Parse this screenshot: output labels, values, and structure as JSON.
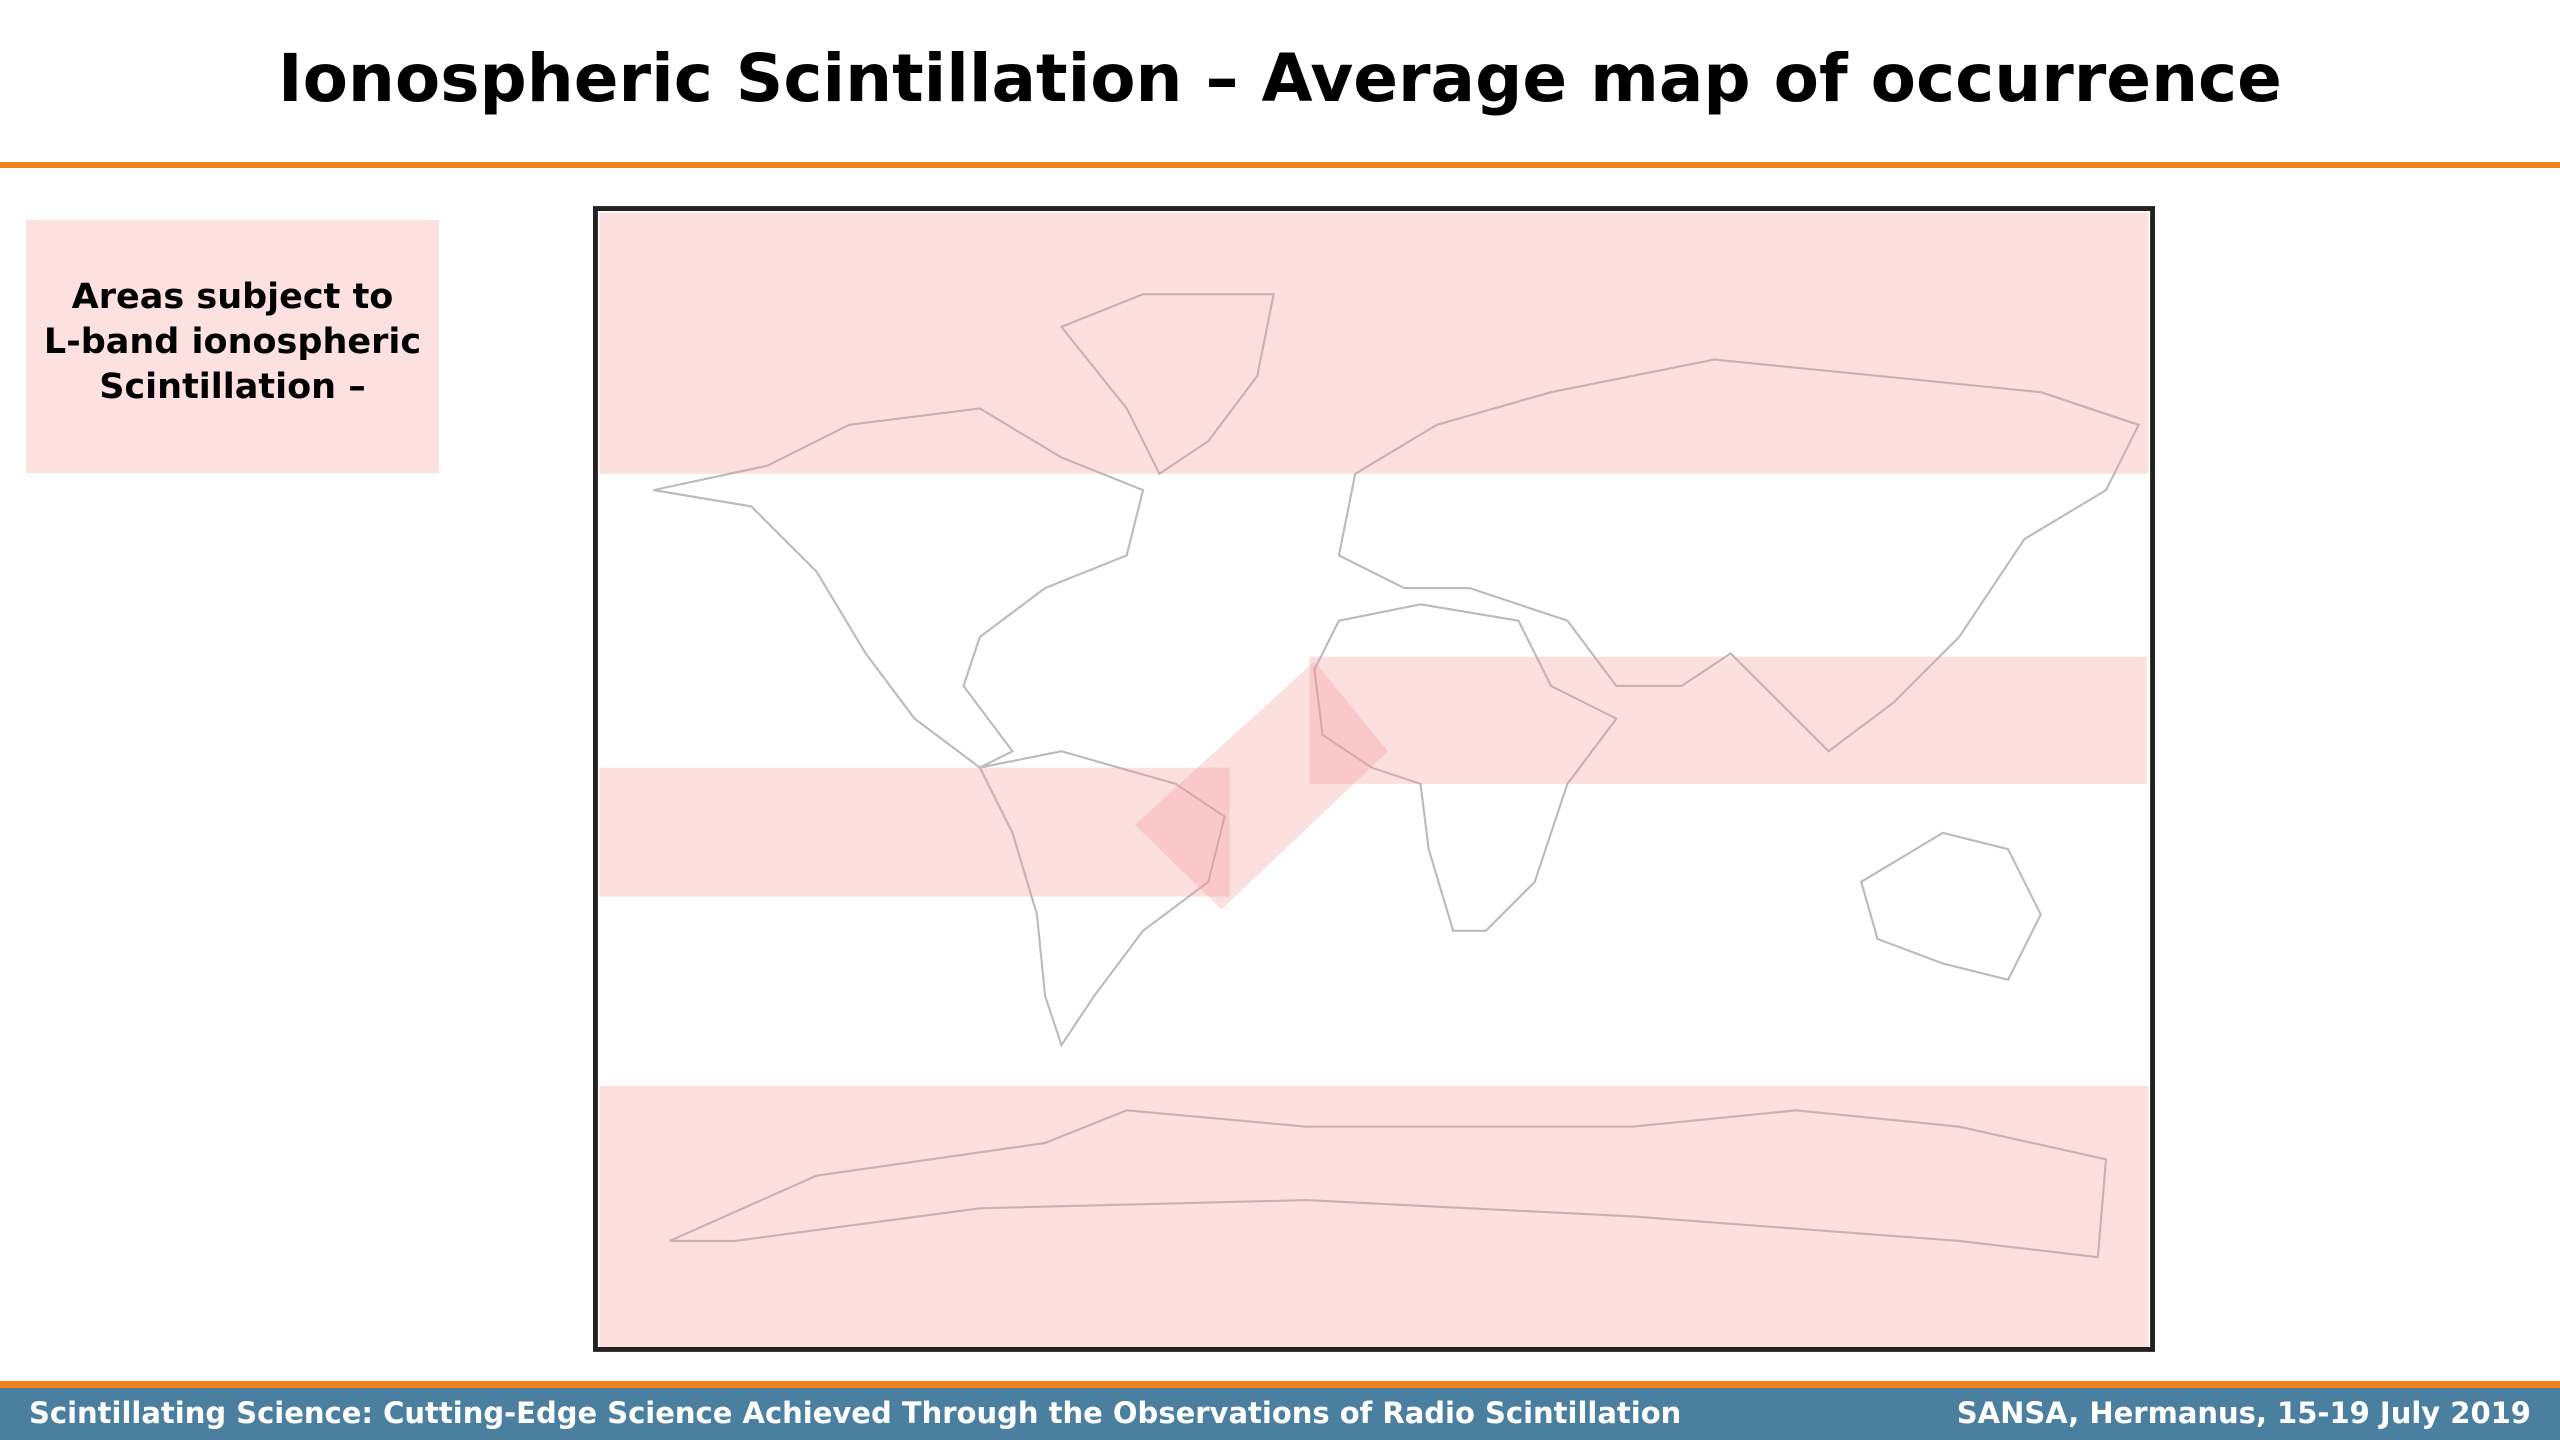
{
  "header": {
    "title": "Ionospheric Scintillation – Average map of occurrence"
  },
  "legend": {
    "lines": [
      "Areas subject to",
      "L-band ionospheric",
      "Scintillation –"
    ]
  },
  "footer": {
    "left": "Scintillating Science: Cutting-Edge Science Achieved Through the Observations of Radio Scintillation",
    "right": "SANSA, Hermanus, 15-19 July 2019"
  }
}
